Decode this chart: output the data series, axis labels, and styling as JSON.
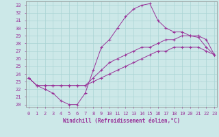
{
  "xlabel": "Windchill (Refroidissement éolien,°C)",
  "bg_color": "#cce8e8",
  "line_color": "#993399",
  "xmin": 0,
  "xmax": 23,
  "ymin": 20,
  "ymax": 33,
  "curve1_x": [
    0,
    1,
    2,
    3,
    4,
    5,
    6,
    7,
    8,
    9,
    10,
    11,
    12,
    13,
    14,
    15,
    16,
    17,
    18,
    19,
    20,
    21,
    22,
    23
  ],
  "curve1_y": [
    23.5,
    22.5,
    22.0,
    21.5,
    20.5,
    20.0,
    20.0,
    21.5,
    24.5,
    27.5,
    28.5,
    30.0,
    31.5,
    32.5,
    33.0,
    33.2,
    31.0,
    30.0,
    29.5,
    29.5,
    29.0,
    28.8,
    27.5,
    26.5
  ],
  "curve2_x": [
    0,
    1,
    2,
    3,
    4,
    5,
    6,
    7,
    8,
    9,
    10,
    11,
    12,
    13,
    14,
    15,
    16,
    17,
    18,
    19,
    20,
    21,
    22,
    23
  ],
  "curve2_y": [
    23.5,
    22.5,
    22.5,
    22.5,
    22.5,
    22.5,
    22.5,
    22.5,
    23.5,
    24.5,
    25.5,
    26.0,
    26.5,
    27.0,
    27.5,
    27.5,
    28.0,
    28.5,
    28.5,
    29.0,
    29.0,
    29.0,
    28.5,
    26.5
  ],
  "curve3_x": [
    0,
    1,
    2,
    3,
    4,
    5,
    6,
    7,
    8,
    9,
    10,
    11,
    12,
    13,
    14,
    15,
    16,
    17,
    18,
    19,
    20,
    21,
    22,
    23
  ],
  "curve3_y": [
    23.5,
    22.5,
    22.5,
    22.5,
    22.5,
    22.5,
    22.5,
    22.5,
    23.0,
    23.5,
    24.0,
    24.5,
    25.0,
    25.5,
    26.0,
    26.5,
    27.0,
    27.0,
    27.5,
    27.5,
    27.5,
    27.5,
    27.0,
    26.5
  ],
  "grid_color": "#aad4d4",
  "spine_color": "#888888",
  "tick_labelsize": 5,
  "xlabel_fontsize": 5.5
}
